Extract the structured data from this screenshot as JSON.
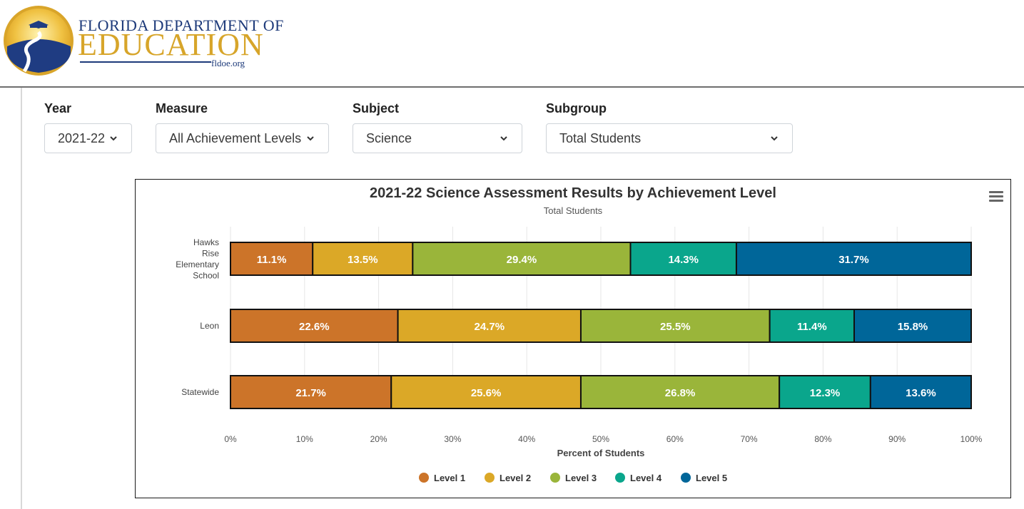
{
  "header": {
    "logo_line1": "FLORIDA DEPARTMENT OF",
    "logo_line2": "EDUCATION",
    "logo_url_text": "fldoe.org"
  },
  "filters": {
    "year": {
      "label": "Year",
      "value": "2021-22"
    },
    "measure": {
      "label": "Measure",
      "value": "All Achievement Levels"
    },
    "subject": {
      "label": "Subject",
      "value": "Science"
    },
    "subgroup": {
      "label": "Subgroup",
      "value": "Total Students"
    }
  },
  "colors": {
    "level1": "#cc7429",
    "level2": "#dba827",
    "level3": "#9ab53a",
    "level4": "#0aa68c",
    "level5": "#006699"
  },
  "chart_data": {
    "type": "bar",
    "orientation": "horizontal",
    "stacked": true,
    "title": "2021-22 Science Assessment Results by Achievement Level",
    "subtitle": "Total Students",
    "xlabel": "Percent of Students",
    "ylabel": "",
    "xlim": [
      0,
      100
    ],
    "x_ticks": [
      "0%",
      "10%",
      "20%",
      "30%",
      "40%",
      "50%",
      "60%",
      "70%",
      "80%",
      "90%",
      "100%"
    ],
    "categories": [
      {
        "lines": [
          "Hawks",
          "Rise",
          "Elementary",
          "School"
        ]
      },
      {
        "lines": [
          "Leon"
        ]
      },
      {
        "lines": [
          "Statewide"
        ]
      }
    ],
    "series": [
      {
        "name": "Level 1",
        "values": [
          11.1,
          22.6,
          21.7
        ],
        "labels": [
          "11.1%",
          "22.6%",
          "21.7%"
        ]
      },
      {
        "name": "Level 2",
        "values": [
          13.5,
          24.7,
          25.6
        ],
        "labels": [
          "13.5%",
          "24.7%",
          "25.6%"
        ]
      },
      {
        "name": "Level 3",
        "values": [
          29.4,
          25.5,
          26.8
        ],
        "labels": [
          "29.4%",
          "25.5%",
          "26.8%"
        ]
      },
      {
        "name": "Level 4",
        "values": [
          14.3,
          11.4,
          12.3
        ],
        "labels": [
          "14.3%",
          "11.4%",
          "12.3%"
        ]
      },
      {
        "name": "Level 5",
        "values": [
          31.7,
          15.8,
          13.6
        ],
        "labels": [
          "31.7%",
          "15.8%",
          "13.6%"
        ]
      }
    ],
    "grid": true,
    "legend_position": "bottom"
  }
}
